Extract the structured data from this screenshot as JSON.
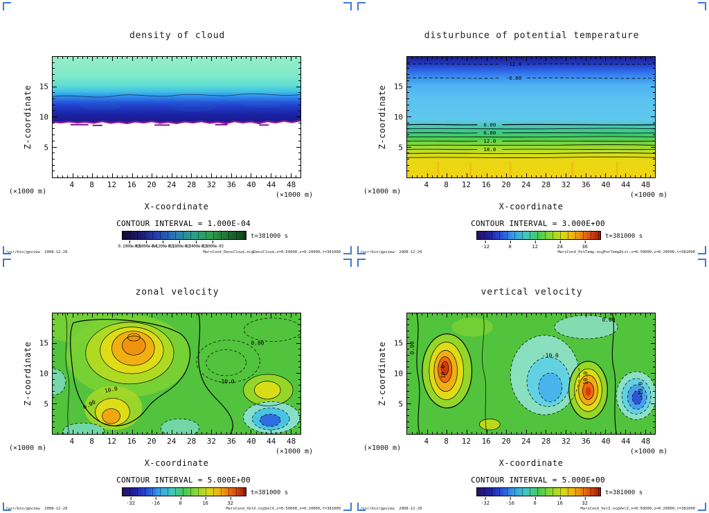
{
  "page": {
    "background": "#ffffff",
    "frame_mark_color": "#3c78d2"
  },
  "chart_data": [
    {
      "type": "contour",
      "title": "density of cloud",
      "xlabel": "X-coordinate",
      "ylabel": "Z-coordinate",
      "x_unit_label": "(×1000 m)",
      "y_unit_label": "(×1000 m)",
      "x_range": [
        0,
        50
      ],
      "y_range": [
        0,
        20
      ],
      "x_ticks": [
        4,
        8,
        12,
        16,
        20,
        24,
        28,
        32,
        36,
        40,
        44,
        48
      ],
      "y_ticks": [
        5,
        10,
        15
      ],
      "x_tick_major_every": 4,
      "y_tick_major_every": 5,
      "grid": false,
      "contour_interval_label": "CONTOUR INTERVAL = 1.000E-04",
      "time_label": "t=381000 s",
      "colorbar_tick_labels": [
        "0.1000e-05",
        "0.6000e-04",
        "0.1200e-03",
        "0.1800e-03",
        "0.2400e-03",
        "0.3000e-03"
      ],
      "colorbar_colors": [
        "#120b2e",
        "#1c1c6e",
        "#2342b2",
        "#2a7ab4",
        "#2aa08a",
        "#2f9e4e",
        "#1e6e32",
        "#124018"
      ],
      "contour_labels": [],
      "labeled_contour_values": [],
      "field_summary": "Cloud layer between z≈9 and z≈20 (×1000 m): pale green aloft grading through cyan to a dark blue density maximum at z≈10-13, with a thin magenta high-density line along the ragged cloud base near z≈9; white (zero density) below.",
      "footer_left": "/usr/bin/gpview  2008-12-20",
      "footer_right": "MarsCond_DensCloud.nc@DensCloud,x=0:50000,z=0:20000,t=381000"
    },
    {
      "type": "contour",
      "title": "disturbunce of potential temperature",
      "xlabel": "X-coordinate",
      "ylabel": "Z-coordinate",
      "x_unit_label": "(×1000 m)",
      "y_unit_label": "(×1000 m)",
      "x_range": [
        0,
        50
      ],
      "y_range": [
        0,
        20
      ],
      "x_ticks": [
        4,
        8,
        12,
        16,
        20,
        24,
        28,
        32,
        36,
        40,
        44,
        48
      ],
      "y_ticks": [
        5,
        10,
        15
      ],
      "x_tick_major_every": 4,
      "y_tick_major_every": 5,
      "grid": false,
      "contour_interval_label": "CONTOUR INTERVAL = 3.000E+00",
      "time_label": "t=381000 s",
      "colorbar_tick_labels": [
        "-12",
        "0",
        "12",
        "24",
        "36"
      ],
      "colorbar_colors": [
        "#2a1060",
        "#2020a0",
        "#2b50d8",
        "#38a0e8",
        "#40c8c0",
        "#48c858",
        "#90d830",
        "#d8d818",
        "#f0a810",
        "#e05810",
        "#a01808"
      ],
      "contour_labels": [
        "-12.0",
        "-6.00",
        "0.00",
        "6.00",
        "12.0",
        "18.0"
      ],
      "labeled_contour_values": [
        -12,
        -6,
        0,
        6,
        12,
        18
      ],
      "field_summary": "Horizontally layered disturbance: strongly negative (dark blue, ≈ -15) near z≈20, dashed -12 and -6 contours aloft, broad light-blue mid-levels, then tightly packed solid contours 0,3,6,...,21 between z≈3 and z≈9, reaching ≈ +21 (yellow) below z≈4.",
      "footer_left": "/usr/bin/gpview  2008-12-20",
      "footer_right": "MarsCond_PotTemp.nc@PotTempDist,x=0:50000,z=0:20000,t=381000"
    },
    {
      "type": "contour",
      "title": "zonal velocity",
      "xlabel": "X-coordinate",
      "ylabel": "Z-coordinate",
      "x_unit_label": "(×1000 m)",
      "y_unit_label": "(×1000 m)",
      "x_range": [
        0,
        50
      ],
      "y_range": [
        0,
        20
      ],
      "x_ticks": [
        4,
        8,
        12,
        16,
        20,
        24,
        28,
        32,
        36,
        40,
        44,
        48
      ],
      "y_ticks": [
        5,
        10,
        15
      ],
      "x_tick_major_every": 4,
      "y_tick_major_every": 5,
      "grid": false,
      "contour_interval_label": "CONTOUR INTERVAL = 5.000E+00",
      "time_label": "t=381000 s",
      "colorbar_tick_labels": [
        "-32",
        "-16",
        "0",
        "16",
        "32"
      ],
      "colorbar_colors": [
        "#2a1060",
        "#2020a0",
        "#2b50d8",
        "#38a0e8",
        "#40c8c0",
        "#48c858",
        "#90d830",
        "#d8d818",
        "#f0a810",
        "#e05810",
        "#a01808"
      ],
      "contour_labels": [
        "0.00",
        "10.0",
        "-10.0"
      ],
      "labeled_contour_values": [
        0,
        10,
        -10
      ],
      "field_summary": "Mostly weak positive flow (green, 0-10) with a strong maximum >15 (yellow-orange) centered near x≈16-20, z≈12-15 extending down to z≈4, a secondary yellow cell near x≈43, z≈6, and negative cells < -10 (cyan-blue) near x≈42-46, z≈1-3, at the left edge near z≈11, and along the bottom center.",
      "footer_left": "/usr/bin/gpview  2008-12-20",
      "footer_right": "MarsCond_VelX.nc@VelX,x=0:50000,z=0:20000,t=381000"
    },
    {
      "type": "contour",
      "title": "vertical velocity",
      "xlabel": "X-coordinate",
      "ylabel": "Z-coordinate",
      "x_unit_label": "(×1000 m)",
      "y_unit_label": "(×1000 m)",
      "x_range": [
        0,
        50
      ],
      "y_range": [
        0,
        20
      ],
      "x_ticks": [
        4,
        8,
        12,
        16,
        20,
        24,
        28,
        32,
        36,
        40,
        44,
        48
      ],
      "y_ticks": [
        5,
        10,
        15
      ],
      "x_tick_major_every": 4,
      "y_tick_major_every": 5,
      "grid": false,
      "contour_interval_label": "CONTOUR INTERVAL = 5.000E+00",
      "time_label": "t=381000 s",
      "colorbar_tick_labels": [
        "-32",
        "-16",
        "0",
        "16",
        "32"
      ],
      "colorbar_colors": [
        "#2a1060",
        "#2020a0",
        "#2b50d8",
        "#38a0e8",
        "#40c8c0",
        "#48c858",
        "#90d830",
        "#d8d818",
        "#f0a810",
        "#e05810",
        "#a01808"
      ],
      "contour_labels": [
        "0.00",
        "10.0",
        "-10.0"
      ],
      "labeled_contour_values": [
        0,
        10,
        -10
      ],
      "field_summary": "Alternating updraft/downdraft cells on a weak green background: strong updrafts >15 (orange-red) near x≈8, z≈5-12 and x≈36-37, z≈4-9; downdrafts < -10 (cyan-blue) in mid-column near x≈24-30 and a deep minimum near x≈46, z≈4-8; pale cyan lobe aloft near x≈32-40, z≈17-19.",
      "footer_left": "/usr/bin/gpview  2008-12-20",
      "footer_right": "MarsCond_VelZ.nc@VelZ,x=0:50000,z=0:20000,t=381000"
    }
  ]
}
